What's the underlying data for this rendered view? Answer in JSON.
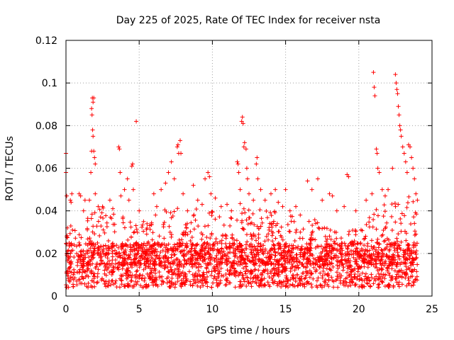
{
  "chart_data": {
    "type": "scatter",
    "title": "Day 225 of 2025, Rate Of TEC Index for receiver nsta",
    "xlabel": "GPS time / hours",
    "ylabel": "ROTI / TECUs",
    "xlim": [
      0,
      25
    ],
    "ylim": [
      0,
      0.12
    ],
    "xticks": [
      0,
      5,
      10,
      15,
      20,
      25
    ],
    "yticks": [
      0,
      0.02,
      0.04,
      0.06,
      0.08,
      0.1,
      0.12
    ],
    "xtick_labels": [
      "0",
      "5",
      "10",
      "15",
      "20",
      "25"
    ],
    "ytick_labels": [
      "0",
      "0.02",
      "0.04",
      "0.06",
      "0.08",
      "0.1",
      "0.12"
    ],
    "grid": true,
    "marker": "+",
    "color": "#ff0000",
    "series": [
      {
        "name": "ROTI",
        "points": [
          [
            0.0,
            0.067
          ],
          [
            0.0,
            0.058
          ],
          [
            0.05,
            0.047
          ],
          [
            0.1,
            0.032
          ],
          [
            0.3,
            0.045
          ],
          [
            0.35,
            0.044
          ],
          [
            0.4,
            0.048
          ],
          [
            0.9,
            0.048
          ],
          [
            1.0,
            0.047
          ],
          [
            1.2,
            0.04
          ],
          [
            1.3,
            0.045
          ],
          [
            1.75,
            0.088
          ],
          [
            1.78,
            0.085
          ],
          [
            1.8,
            0.093
          ],
          [
            1.85,
            0.091
          ],
          [
            1.9,
            0.093
          ],
          [
            1.82,
            0.078
          ],
          [
            1.85,
            0.075
          ],
          [
            1.9,
            0.068
          ],
          [
            1.95,
            0.065
          ],
          [
            2.0,
            0.062
          ],
          [
            1.7,
            0.058
          ],
          [
            1.75,
            0.068
          ],
          [
            2.0,
            0.048
          ],
          [
            1.6,
            0.045
          ],
          [
            2.2,
            0.042
          ],
          [
            2.5,
            0.042
          ],
          [
            3.0,
            0.045
          ],
          [
            3.2,
            0.041
          ],
          [
            3.6,
            0.07
          ],
          [
            3.65,
            0.069
          ],
          [
            3.7,
            0.058
          ],
          [
            3.75,
            0.047
          ],
          [
            4.0,
            0.05
          ],
          [
            4.2,
            0.055
          ],
          [
            4.3,
            0.045
          ],
          [
            4.5,
            0.061
          ],
          [
            4.55,
            0.062
          ],
          [
            4.6,
            0.05
          ],
          [
            4.8,
            0.082
          ],
          [
            5.0,
            0.04
          ],
          [
            5.3,
            0.035
          ],
          [
            6.0,
            0.048
          ],
          [
            6.2,
            0.042
          ],
          [
            6.5,
            0.05
          ],
          [
            6.8,
            0.053
          ],
          [
            7.0,
            0.058
          ],
          [
            7.2,
            0.063
          ],
          [
            7.4,
            0.055
          ],
          [
            7.6,
            0.07
          ],
          [
            7.65,
            0.071
          ],
          [
            7.7,
            0.067
          ],
          [
            7.8,
            0.073
          ],
          [
            7.85,
            0.067
          ],
          [
            8.0,
            0.048
          ],
          [
            8.3,
            0.04
          ],
          [
            8.7,
            0.052
          ],
          [
            9.0,
            0.045
          ],
          [
            9.3,
            0.043
          ],
          [
            9.5,
            0.055
          ],
          [
            9.7,
            0.058
          ],
          [
            9.8,
            0.056
          ],
          [
            9.9,
            0.048
          ],
          [
            10.2,
            0.046
          ],
          [
            10.6,
            0.042
          ],
          [
            11.0,
            0.043
          ],
          [
            11.3,
            0.04
          ],
          [
            11.7,
            0.063
          ],
          [
            11.75,
            0.062
          ],
          [
            11.8,
            0.058
          ],
          [
            11.9,
            0.05
          ],
          [
            12.0,
            0.082
          ],
          [
            12.05,
            0.084
          ],
          [
            12.1,
            0.081
          ],
          [
            12.15,
            0.07
          ],
          [
            12.2,
            0.072
          ],
          [
            12.3,
            0.069
          ],
          [
            12.35,
            0.06
          ],
          [
            12.4,
            0.055
          ],
          [
            12.5,
            0.048
          ],
          [
            12.8,
            0.045
          ],
          [
            13.0,
            0.062
          ],
          [
            13.05,
            0.065
          ],
          [
            13.1,
            0.055
          ],
          [
            13.3,
            0.05
          ],
          [
            13.6,
            0.045
          ],
          [
            14.0,
            0.048
          ],
          [
            14.3,
            0.05
          ],
          [
            14.5,
            0.044
          ],
          [
            14.8,
            0.042
          ],
          [
            15.0,
            0.05
          ],
          [
            15.3,
            0.04
          ],
          [
            15.7,
            0.042
          ],
          [
            16.0,
            0.038
          ],
          [
            16.5,
            0.054
          ],
          [
            16.8,
            0.05
          ],
          [
            17.2,
            0.055
          ],
          [
            17.5,
            0.045
          ],
          [
            18.0,
            0.048
          ],
          [
            18.2,
            0.047
          ],
          [
            18.5,
            0.04
          ],
          [
            19.0,
            0.042
          ],
          [
            19.2,
            0.057
          ],
          [
            19.3,
            0.056
          ],
          [
            19.8,
            0.04
          ],
          [
            20.5,
            0.045
          ],
          [
            20.9,
            0.048
          ],
          [
            21.0,
            0.105
          ],
          [
            21.05,
            0.098
          ],
          [
            21.1,
            0.094
          ],
          [
            21.2,
            0.069
          ],
          [
            21.25,
            0.067
          ],
          [
            21.3,
            0.06
          ],
          [
            21.4,
            0.058
          ],
          [
            21.6,
            0.05
          ],
          [
            21.8,
            0.047
          ],
          [
            22.0,
            0.05
          ],
          [
            22.3,
            0.06
          ],
          [
            22.5,
            0.104
          ],
          [
            22.55,
            0.1
          ],
          [
            22.6,
            0.097
          ],
          [
            22.65,
            0.095
          ],
          [
            22.7,
            0.089
          ],
          [
            22.75,
            0.085
          ],
          [
            22.8,
            0.08
          ],
          [
            22.85,
            0.078
          ],
          [
            22.9,
            0.075
          ],
          [
            23.0,
            0.07
          ],
          [
            23.1,
            0.067
          ],
          [
            23.2,
            0.063
          ],
          [
            23.3,
            0.058
          ],
          [
            23.4,
            0.071
          ],
          [
            23.5,
            0.07
          ],
          [
            23.6,
            0.065
          ],
          [
            23.7,
            0.06
          ],
          [
            23.8,
            0.055
          ],
          [
            23.9,
            0.048
          ],
          [
            24.0,
            0.045
          ]
        ],
        "dense_band": {
          "x_range": [
            0,
            24
          ],
          "baseline_min": 0.004,
          "baseline_max": 0.025,
          "envelope": [
            [
              0,
              0.03
            ],
            [
              1,
              0.04
            ],
            [
              2,
              0.045
            ],
            [
              3,
              0.04
            ],
            [
              4,
              0.042
            ],
            [
              5,
              0.035
            ],
            [
              6,
              0.038
            ],
            [
              7,
              0.045
            ],
            [
              8,
              0.04
            ],
            [
              9,
              0.042
            ],
            [
              10,
              0.04
            ],
            [
              11,
              0.035
            ],
            [
              12,
              0.045
            ],
            [
              13,
              0.042
            ],
            [
              14,
              0.04
            ],
            [
              15,
              0.04
            ],
            [
              16,
              0.035
            ],
            [
              17,
              0.038
            ],
            [
              18,
              0.035
            ],
            [
              19,
              0.03
            ],
            [
              20,
              0.032
            ],
            [
              21,
              0.04
            ],
            [
              22,
              0.045
            ],
            [
              23,
              0.05
            ],
            [
              24,
              0.045
            ]
          ]
        }
      }
    ]
  }
}
